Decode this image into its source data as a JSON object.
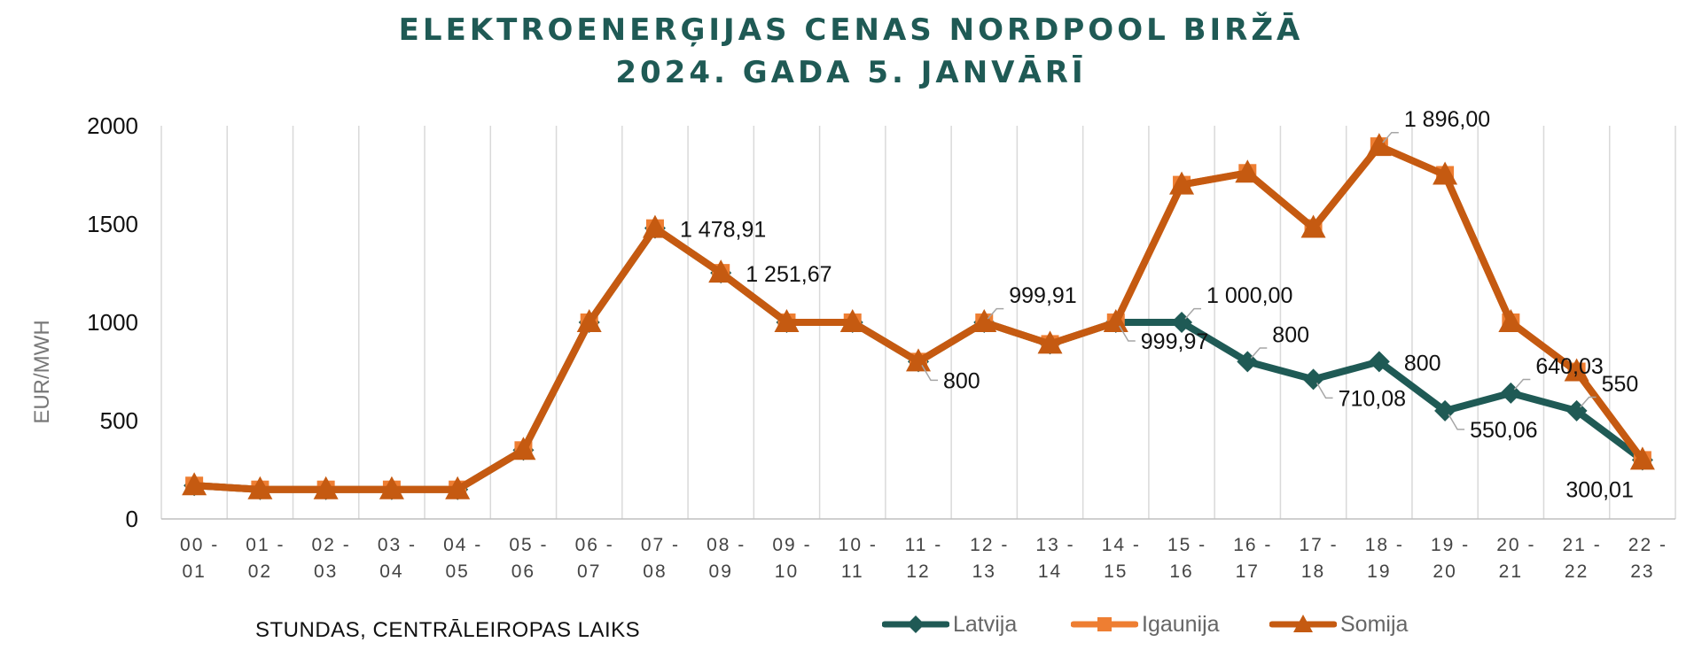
{
  "chart_data": {
    "type": "line",
    "title": "ELEKTROENERĢIJAS CENAS NORDPOOL BIRŽĀ",
    "subtitle": "2024. GADA 5. JANVĀRĪ",
    "xlabel": "STUNDAS, CENTRĀLEIROPAS LAIKS",
    "ylabel": "EUR/MWH",
    "ylim": [
      0,
      2000
    ],
    "yticks": [
      "0",
      "500",
      "1000",
      "1500",
      "2000"
    ],
    "ytick_values": [
      0,
      500,
      1000,
      1500,
      2000
    ],
    "grid": "vertical",
    "legend_position": "bottom",
    "categories": [
      [
        "00 -",
        "01"
      ],
      [
        "01 -",
        "02"
      ],
      [
        "02 -",
        "03"
      ],
      [
        "03 -",
        "04"
      ],
      [
        "04 -",
        "05"
      ],
      [
        "05 -",
        "06"
      ],
      [
        "06 -",
        "07"
      ],
      [
        "07 -",
        "08"
      ],
      [
        "08 -",
        "09"
      ],
      [
        "09 -",
        "10"
      ],
      [
        "10 -",
        "11"
      ],
      [
        "11 -",
        "12"
      ],
      [
        "12 -",
        "13"
      ],
      [
        "13 -",
        "14"
      ],
      [
        "14 -",
        "15"
      ],
      [
        "15 -",
        "16"
      ],
      [
        "16 -",
        "17"
      ],
      [
        "17 -",
        "18"
      ],
      [
        "18 -",
        "19"
      ],
      [
        "19 -",
        "20"
      ],
      [
        "20 -",
        "21"
      ],
      [
        "21 -",
        "22"
      ],
      [
        "22 -",
        "23"
      ]
    ],
    "series": [
      {
        "name": "Latvija",
        "color": "#1f5a55",
        "marker": "diamond",
        "values": [
          170,
          150,
          150,
          150,
          150,
          350,
          1000,
          1478.91,
          1251.67,
          1000,
          1000,
          800,
          999.91,
          890,
          999.97,
          1000,
          800,
          710.08,
          800,
          550.06,
          640.03,
          550,
          300.01
        ]
      },
      {
        "name": "Igaunija",
        "color": "#ee7e32",
        "marker": "square",
        "values": [
          170,
          150,
          150,
          150,
          150,
          350,
          1000,
          1478.91,
          1251.67,
          1000,
          1000,
          800,
          999.91,
          890,
          999.97,
          1700,
          1760,
          1480,
          1896,
          1750,
          1000,
          750,
          300.01
        ]
      },
      {
        "name": "Somija",
        "color": "#c55a11",
        "marker": "triangle",
        "values": [
          170,
          150,
          150,
          150,
          150,
          350,
          1000,
          1478.91,
          1251.67,
          1000,
          1000,
          800,
          999.91,
          890,
          999.97,
          1700,
          1760,
          1480,
          1896,
          1750,
          1000,
          750,
          300.01
        ]
      }
    ],
    "annotations": [
      {
        "text": "1 478,91",
        "x_index": 7,
        "value": 1478.91,
        "anchor": "right"
      },
      {
        "text": "1 251,67",
        "x_index": 8,
        "value": 1251.67,
        "anchor": "right"
      },
      {
        "text": "800",
        "x_index": 11,
        "value": 800,
        "anchor": "below-right"
      },
      {
        "text": "999,91",
        "x_index": 12,
        "value": 999.91,
        "anchor": "above-right"
      },
      {
        "text": "999,97",
        "x_index": 14,
        "value": 999.97,
        "anchor": "below-right"
      },
      {
        "text": "1 000,00",
        "x_index": 15,
        "value": 1000,
        "anchor": "above-right"
      },
      {
        "text": "800",
        "x_index": 16,
        "value": 800,
        "anchor": "above-right"
      },
      {
        "text": "710,08",
        "x_index": 17,
        "value": 710.08,
        "anchor": "below-right"
      },
      {
        "text": "800",
        "x_index": 18,
        "value": 800,
        "anchor": "right"
      },
      {
        "text": "1 896,00",
        "x_index": 18,
        "value": 1896,
        "anchor": "above-right"
      },
      {
        "text": "550,06",
        "x_index": 19,
        "value": 550.06,
        "anchor": "below-right"
      },
      {
        "text": "640,03",
        "x_index": 20,
        "value": 640.03,
        "anchor": "above-right"
      },
      {
        "text": "550",
        "x_index": 21,
        "value": 550,
        "anchor": "above-right"
      },
      {
        "text": "300,01",
        "x_index": 22,
        "value": 300.01,
        "anchor": "below-left"
      }
    ]
  }
}
